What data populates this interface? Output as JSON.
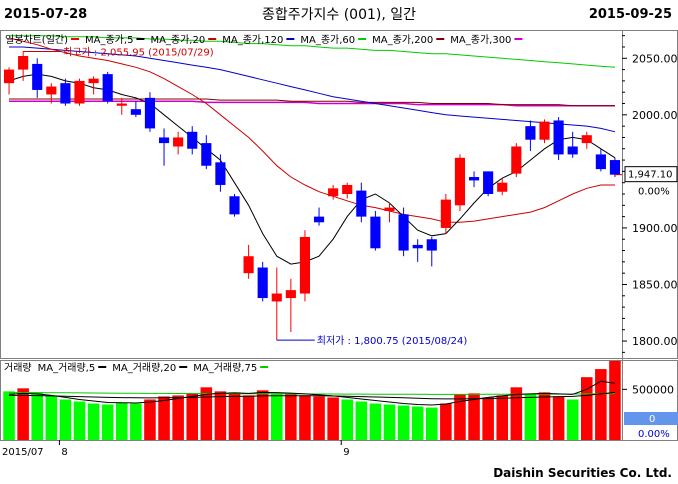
{
  "header": {
    "start_date": "2015-07-28",
    "title": "종합주가지수 (001), 일간",
    "end_date": "2015-09-25"
  },
  "footer": {
    "brand": "Daishin Securities Co. Ltd."
  },
  "colors": {
    "up": "#ff0000",
    "down": "#0000ff",
    "ma5": "#000000",
    "ma20": "#cc0000",
    "ma120": "#0000cc",
    "ma60": "#00cc00",
    "ma200": "#800000",
    "ma300": "#cc00cc",
    "vol_up": "#ff0000",
    "vol_down": "#00ff00"
  },
  "chart_data": [
    {
      "type": "candlestick",
      "legend": [
        {
          "label": "일봉차트(일간)",
          "color": "#ff0000",
          "dot": false
        },
        {
          "label": "MA_종가,5",
          "color": "#000000",
          "dot": true
        },
        {
          "label": "MA_종가,20",
          "color": "#cc0000",
          "dot": true
        },
        {
          "label": "MA_종가,120",
          "color": "#0000cc",
          "dot": true
        },
        {
          "label": "MA_종가,60",
          "color": "#00cc00",
          "dot": true
        },
        {
          "label": "MA_종가,200",
          "color": "#800000",
          "dot": true
        },
        {
          "label": "MA_종가,300",
          "color": "#cc00cc",
          "dot": true
        }
      ],
      "ylim": [
        1785,
        2075
      ],
      "yticks": [
        2050,
        2000,
        1950,
        1900,
        1850,
        1800
      ],
      "ytick_labels": [
        "2050.00",
        "2000.00",
        "1950.00",
        "1900.00",
        "1850.00",
        "1800.00"
      ],
      "last_price": 1947.1,
      "last_price_label": "1,947.10",
      "change_label": "0.00%",
      "high_annotation": {
        "text": "최고가 : 2,055.95 (2015/07/29)",
        "value": 2055.95,
        "index": 1
      },
      "low_annotation": {
        "text": "최저가 : 1,800.75 (2015/08/24)",
        "value": 1800.75,
        "index": 19
      },
      "candles": [
        {
          "o": 2028,
          "h": 2042,
          "l": 2018,
          "c": 2040
        },
        {
          "o": 2040,
          "h": 2056,
          "l": 2030,
          "c": 2052
        },
        {
          "o": 2045,
          "h": 2050,
          "l": 2015,
          "c": 2022
        },
        {
          "o": 2018,
          "h": 2028,
          "l": 2010,
          "c": 2025
        },
        {
          "o": 2028,
          "h": 2032,
          "l": 2008,
          "c": 2010
        },
        {
          "o": 2010,
          "h": 2032,
          "l": 2008,
          "c": 2030
        },
        {
          "o": 2028,
          "h": 2034,
          "l": 2018,
          "c": 2032
        },
        {
          "o": 2036,
          "h": 2038,
          "l": 2010,
          "c": 2012
        },
        {
          "o": 2008,
          "h": 2015,
          "l": 2000,
          "c": 2010
        },
        {
          "o": 2005,
          "h": 2012,
          "l": 1998,
          "c": 2000
        },
        {
          "o": 2015,
          "h": 2020,
          "l": 1985,
          "c": 1988
        },
        {
          "o": 1980,
          "h": 1988,
          "l": 1955,
          "c": 1975
        },
        {
          "o": 1972,
          "h": 1985,
          "l": 1965,
          "c": 1980
        },
        {
          "o": 1985,
          "h": 1990,
          "l": 1965,
          "c": 1970
        },
        {
          "o": 1975,
          "h": 1982,
          "l": 1952,
          "c": 1955
        },
        {
          "o": 1958,
          "h": 1965,
          "l": 1932,
          "c": 1938
        },
        {
          "o": 1928,
          "h": 1930,
          "l": 1910,
          "c": 1912
        },
        {
          "o": 1860,
          "h": 1885,
          "l": 1855,
          "c": 1875
        },
        {
          "o": 1865,
          "h": 1870,
          "l": 1835,
          "c": 1838
        },
        {
          "o": 1835,
          "h": 1865,
          "l": 1800.75,
          "c": 1842
        },
        {
          "o": 1838,
          "h": 1855,
          "l": 1808,
          "c": 1845
        },
        {
          "o": 1842,
          "h": 1898,
          "l": 1835,
          "c": 1892
        },
        {
          "o": 1910,
          "h": 1918,
          "l": 1902,
          "c": 1905
        },
        {
          "o": 1928,
          "h": 1938,
          "l": 1925,
          "c": 1935
        },
        {
          "o": 1930,
          "h": 1940,
          "l": 1926,
          "c": 1938
        },
        {
          "o": 1933,
          "h": 1940,
          "l": 1905,
          "c": 1910
        },
        {
          "o": 1910,
          "h": 1915,
          "l": 1880,
          "c": 1882
        },
        {
          "o": 1915,
          "h": 1922,
          "l": 1905,
          "c": 1918
        },
        {
          "o": 1912,
          "h": 1918,
          "l": 1875,
          "c": 1880
        },
        {
          "o": 1885,
          "h": 1890,
          "l": 1870,
          "c": 1882
        },
        {
          "o": 1890,
          "h": 1892,
          "l": 1866,
          "c": 1880
        },
        {
          "o": 1900,
          "h": 1930,
          "l": 1895,
          "c": 1925
        },
        {
          "o": 1920,
          "h": 1965,
          "l": 1915,
          "c": 1962
        },
        {
          "o": 1945,
          "h": 1950,
          "l": 1936,
          "c": 1942
        },
        {
          "o": 1950,
          "h": 1950,
          "l": 1928,
          "c": 1930
        },
        {
          "o": 1932,
          "h": 1944,
          "l": 1929,
          "c": 1940
        },
        {
          "o": 1948,
          "h": 1975,
          "l": 1945,
          "c": 1972
        },
        {
          "o": 1990,
          "h": 1995,
          "l": 1968,
          "c": 1978
        },
        {
          "o": 1978,
          "h": 1996,
          "l": 1975,
          "c": 1994
        },
        {
          "o": 1995,
          "h": 1998,
          "l": 1960,
          "c": 1965
        },
        {
          "o": 1972,
          "h": 1985,
          "l": 1962,
          "c": 1965
        },
        {
          "o": 1975,
          "h": 1985,
          "l": 1970,
          "c": 1982
        },
        {
          "o": 1965,
          "h": 1970,
          "l": 1950,
          "c": 1952
        },
        {
          "o": 1960,
          "h": 1962,
          "l": 1945,
          "c": 1947.1
        }
      ],
      "ma5": [
        2030,
        2034,
        2036,
        2034,
        2030,
        2028,
        2024,
        2022,
        2018,
        2015,
        2010,
        2000,
        1990,
        1980,
        1970,
        1960,
        1940,
        1920,
        1895,
        1875,
        1868,
        1870,
        1875,
        1890,
        1910,
        1925,
        1930,
        1922,
        1910,
        1898,
        1893,
        1895,
        1908,
        1922,
        1935,
        1944,
        1950,
        1960,
        1970,
        1978,
        1980,
        1978,
        1970,
        1962
      ],
      "ma20": [
        2068,
        2065,
        2062,
        2058,
        2055,
        2052,
        2050,
        2048,
        2045,
        2042,
        2038,
        2032,
        2025,
        2018,
        2010,
        2000,
        1990,
        1980,
        1968,
        1955,
        1945,
        1938,
        1932,
        1928,
        1924,
        1920,
        1918,
        1915,
        1912,
        1910,
        1908,
        1905,
        1905,
        1906,
        1908,
        1910,
        1912,
        1914,
        1918,
        1924,
        1930,
        1935,
        1938,
        1938
      ],
      "ma120": [
        2060,
        2060,
        2059,
        2058,
        2057,
        2056,
        2055,
        2054,
        2053,
        2052,
        2050,
        2048,
        2046,
        2044,
        2042,
        2040,
        2037,
        2034,
        2031,
        2028,
        2025,
        2022,
        2019,
        2016,
        2014,
        2012,
        2010,
        2008,
        2006,
        2004,
        2002,
        2000,
        1999,
        1998,
        1997,
        1996,
        1995,
        1994,
        1993,
        1992,
        1991,
        1990,
        1988,
        1985
      ],
      "ma60": [
        2070,
        2070,
        2070,
        2070,
        2069,
        2069,
        2069,
        2068,
        2068,
        2068,
        2067,
        2067,
        2066,
        2066,
        2065,
        2065,
        2064,
        2063,
        2063,
        2062,
        2061,
        2061,
        2060,
        2059,
        2059,
        2058,
        2057,
        2057,
        2056,
        2055,
        2054,
        2054,
        2053,
        2052,
        2051,
        2050,
        2049,
        2048,
        2047,
        2046,
        2045,
        2044,
        2043,
        2042
      ],
      "ma200": [
        2014,
        2014,
        2014,
        2014,
        2014,
        2014,
        2014,
        2014,
        2014,
        2014,
        2014,
        2014,
        2014,
        2014,
        2014,
        2013,
        2013,
        2013,
        2013,
        2013,
        2012,
        2012,
        2012,
        2012,
        2012,
        2011,
        2011,
        2011,
        2011,
        2011,
        2010,
        2010,
        2010,
        2010,
        2010,
        2009,
        2009,
        2009,
        2009,
        2009,
        2008,
        2008,
        2008,
        2008
      ],
      "ma300": [
        2012,
        2012,
        2012,
        2012,
        2012,
        2012,
        2012,
        2012,
        2012,
        2012,
        2012,
        2012,
        2012,
        2012,
        2011,
        2011,
        2011,
        2011,
        2011,
        2011,
        2011,
        2011,
        2010,
        2010,
        2010,
        2010,
        2010,
        2010,
        2010,
        2009,
        2009,
        2009,
        2009,
        2009,
        2009,
        2009,
        2008,
        2008,
        2008,
        2008,
        2008,
        2008,
        2008,
        2008
      ]
    },
    {
      "type": "bar",
      "title": "거래량",
      "legend": [
        {
          "label": "MA_거래량,5",
          "color": "#000000"
        },
        {
          "label": "MA_거래량,20",
          "color": "#000000"
        },
        {
          "label": "MA_거래량,75",
          "color": "#00cc00"
        }
      ],
      "ylim": [
        0,
        750000
      ],
      "yticks": [
        500000
      ],
      "ytick_labels": [
        "500000"
      ],
      "value_box": "0",
      "change_label": "0.00%",
      "volumes": [
        480000,
        510000,
        470000,
        440000,
        400000,
        380000,
        360000,
        350000,
        370000,
        360000,
        400000,
        430000,
        440000,
        460000,
        520000,
        480000,
        470000,
        440000,
        490000,
        460000,
        450000,
        440000,
        430000,
        420000,
        400000,
        380000,
        360000,
        350000,
        340000,
        330000,
        320000,
        360000,
        450000,
        460000,
        420000,
        440000,
        520000,
        450000,
        470000,
        430000,
        400000,
        620000,
        700000,
        780000
      ],
      "up_flags": [
        false,
        true,
        false,
        false,
        false,
        false,
        false,
        false,
        false,
        false,
        true,
        true,
        true,
        true,
        true,
        true,
        true,
        true,
        true,
        false,
        true,
        true,
        true,
        true,
        false,
        false,
        false,
        false,
        false,
        false,
        false,
        true,
        true,
        true,
        true,
        true,
        true,
        false,
        true,
        true,
        false,
        true,
        true,
        true
      ],
      "vma5": [
        450000,
        460000,
        455000,
        440000,
        420000,
        400000,
        385000,
        370000,
        368000,
        365000,
        375000,
        390000,
        410000,
        430000,
        450000,
        460000,
        465000,
        460000,
        470000,
        468000,
        463000,
        455000,
        445000,
        435000,
        420000,
        405000,
        390000,
        375000,
        360000,
        350000,
        345000,
        355000,
        380000,
        400000,
        420000,
        435000,
        450000,
        455000,
        460000,
        455000,
        450000,
        500000,
        580000,
        560000
      ],
      "vma20": [
        440000,
        440000,
        438000,
        435000,
        432000,
        428000,
        424000,
        420000,
        418000,
        416000,
        415000,
        416000,
        418000,
        420000,
        424000,
        428000,
        430000,
        432000,
        435000,
        436000,
        437000,
        437000,
        436000,
        434000,
        432000,
        428000,
        424000,
        420000,
        416000,
        412000,
        408000,
        406000,
        406000,
        408000,
        410000,
        412000,
        416000,
        420000,
        424000,
        428000,
        430000,
        440000,
        455000,
        470000
      ],
      "vma75": [
        470000,
        469000,
        468000,
        467000,
        466000,
        465000,
        464000,
        463000,
        462000,
        461000,
        460000,
        460000,
        459000,
        459000,
        458000,
        458000,
        457000,
        457000,
        456000,
        456000,
        455000,
        455000,
        454000,
        454000,
        453000,
        453000,
        452000,
        452000,
        451000,
        451000,
        450000,
        450000,
        450000,
        450000,
        451000,
        451000,
        452000,
        452000,
        453000,
        453000,
        454000,
        455000,
        456000,
        457000
      ]
    }
  ],
  "x_axis": {
    "labels": [
      {
        "text": "2015/07",
        "index": 0
      },
      {
        "text": "8",
        "index": 4
      },
      {
        "text": "9",
        "index": 24
      }
    ]
  }
}
